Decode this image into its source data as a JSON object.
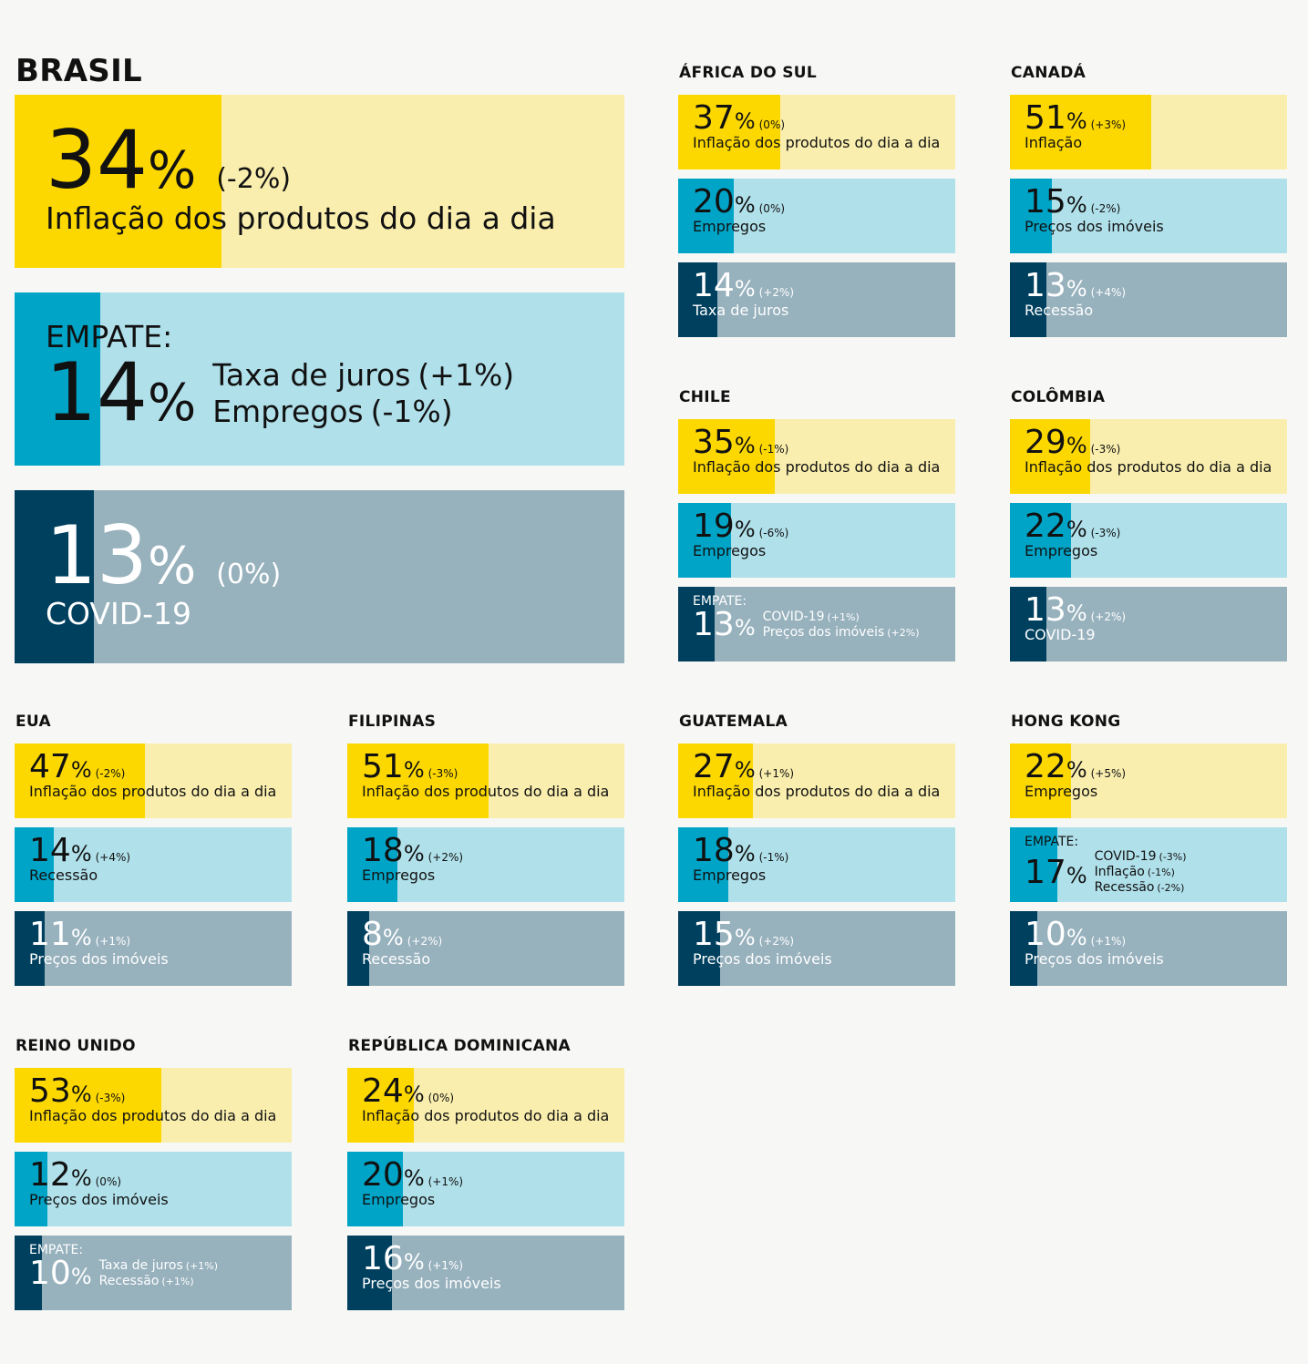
{
  "percent_sign": "%",
  "countries": [
    {
      "name": "BRASIL",
      "items": [
        {
          "value": 34,
          "change": "(-2%)",
          "label": "Inflação dos produtos do dia a dia"
        },
        {
          "tie": "EMPATE:",
          "value": 14,
          "items": [
            {
              "label": "Taxa de juros",
              "change": "(+1%)"
            },
            {
              "label": "Empregos",
              "change": "(-1%)"
            }
          ]
        },
        {
          "value": 13,
          "change": "(0%)",
          "label": "COVID-19"
        }
      ]
    },
    {
      "name": "ÁFRICA DO SUL",
      "items": [
        {
          "value": 37,
          "change": "(0%)",
          "label": "Inflação dos produtos do dia a dia"
        },
        {
          "value": 20,
          "change": "(0%)",
          "label": "Empregos"
        },
        {
          "value": 14,
          "change": "(+2%)",
          "label": "Taxa de juros"
        }
      ]
    },
    {
      "name": "CANADÁ",
      "items": [
        {
          "value": 51,
          "change": "(+3%)",
          "label": "Inflação"
        },
        {
          "value": 15,
          "change": "(-2%)",
          "label": "Preços dos imóveis"
        },
        {
          "value": 13,
          "change": "(+4%)",
          "label": "Recessão"
        }
      ]
    },
    {
      "name": "CHILE",
      "items": [
        {
          "value": 35,
          "change": "(-1%)",
          "label": "Inflação dos produtos do dia a dia"
        },
        {
          "value": 19,
          "change": "(-6%)",
          "label": "Empregos"
        },
        {
          "tie": "EMPATE:",
          "value": 13,
          "items": [
            {
              "label": "COVID-19",
              "change": "(+1%)"
            },
            {
              "label": "Preços dos imóveis",
              "change": "(+2%)"
            }
          ]
        }
      ]
    },
    {
      "name": "COLÔMBIA",
      "items": [
        {
          "value": 29,
          "change": "(-3%)",
          "label": "Inflação dos produtos do dia a dia"
        },
        {
          "value": 22,
          "change": "(-3%)",
          "label": "Empregos"
        },
        {
          "value": 13,
          "change": "(+2%)",
          "label": "COVID-19"
        }
      ]
    },
    {
      "name": "EUA",
      "items": [
        {
          "value": 47,
          "change": "(-2%)",
          "label": "Inflação dos produtos do dia a dia"
        },
        {
          "value": 14,
          "change": "(+4%)",
          "label": "Recessão"
        },
        {
          "value": 11,
          "change": "(+1%)",
          "label": "Preços dos imóveis"
        }
      ]
    },
    {
      "name": "FILIPINAS",
      "items": [
        {
          "value": 51,
          "change": "(-3%)",
          "label": "Inflação dos produtos do dia a dia"
        },
        {
          "value": 18,
          "change": "(+2%)",
          "label": "Empregos"
        },
        {
          "value": 8,
          "change": "(+2%)",
          "label": "Recessão"
        }
      ]
    },
    {
      "name": "GUATEMALA",
      "items": [
        {
          "value": 27,
          "change": "(+1%)",
          "label": "Inflação dos produtos do dia a dia"
        },
        {
          "value": 18,
          "change": "(-1%)",
          "label": "Empregos"
        },
        {
          "value": 15,
          "change": "(+2%)",
          "label": "Preços dos imóveis"
        }
      ]
    },
    {
      "name": "HONG KONG",
      "items": [
        {
          "value": 22,
          "change": "(+5%)",
          "label": "Empregos"
        },
        {
          "tie": "EMPATE:",
          "value": 17,
          "items": [
            {
              "label": "COVID-19",
              "change": "(-3%)"
            },
            {
              "label": "Inflação",
              "change": "(-1%)"
            },
            {
              "label": "Recessão",
              "change": "(-2%)"
            }
          ]
        },
        {
          "value": 10,
          "change": "(+1%)",
          "label": "Preços dos imóveis"
        }
      ]
    },
    {
      "name": "REINO UNIDO",
      "items": [
        {
          "value": 53,
          "change": "(-3%)",
          "label": "Inflação dos produtos do dia a dia"
        },
        {
          "value": 12,
          "change": "(0%)",
          "label": "Preços dos imóveis"
        },
        {
          "tie": "EMPATE:",
          "value": 10,
          "items": [
            {
              "label": "Taxa de juros",
              "change": "(+1%)"
            },
            {
              "label": "Recessão",
              "change": "(+1%)"
            }
          ]
        }
      ]
    },
    {
      "name": "REPÚBLICA DOMINICANA",
      "items": [
        {
          "value": 24,
          "change": "(0%)",
          "label": "Inflação dos produtos do dia a dia"
        },
        {
          "value": 20,
          "change": "(+1%)",
          "label": "Empregos"
        },
        {
          "value": 16,
          "change": "(+1%)",
          "label": "Preços dos imóveis"
        }
      ]
    }
  ]
}
